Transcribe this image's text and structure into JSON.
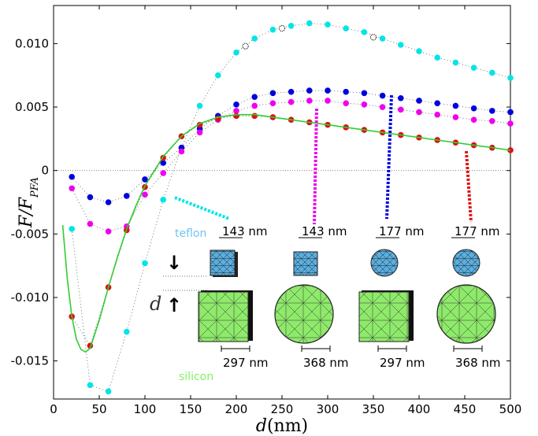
{
  "chart_data": {
    "type": "scatter",
    "x_axis": {
      "title": "d(nm)",
      "range": [
        0,
        500
      ],
      "ticks": [
        0,
        50,
        100,
        150,
        200,
        250,
        300,
        350,
        400,
        450,
        500
      ],
      "tick_labels": [
        "0",
        "50",
        "100",
        "150",
        "200",
        "250",
        "300",
        "350",
        "400",
        "450",
        "500"
      ]
    },
    "y_axis": {
      "title": "F/F_PFA",
      "range": [
        -0.018,
        0.013
      ],
      "ticks": [
        -0.015,
        -0.01,
        -0.005,
        0,
        0.005,
        0.01
      ],
      "tick_labels": [
        "-0.015",
        "-0.010",
        "-0.005",
        "0",
        "0.005",
        "0.010"
      ],
      "zero_line": true
    },
    "series": [
      {
        "color": "#00e5e5",
        "x": [
          20,
          40,
          60,
          80,
          100,
          120,
          140,
          160,
          180,
          200,
          220,
          240,
          260,
          280,
          300,
          320,
          340,
          360,
          380,
          400,
          420,
          440,
          460,
          480,
          500
        ],
        "y": [
          -0.0046,
          -0.0169,
          -0.0174,
          -0.0127,
          -0.0073,
          -0.0023,
          0.0018,
          0.0051,
          0.0075,
          0.0093,
          0.0104,
          0.0111,
          0.0114,
          0.0116,
          0.0115,
          0.0112,
          0.0109,
          0.0104,
          0.0099,
          0.0094,
          0.0089,
          0.0085,
          0.0081,
          0.0077,
          0.0073
        ]
      },
      {
        "color": "#0000dd",
        "x": [
          20,
          40,
          60,
          80,
          100,
          120,
          140,
          160,
          180,
          200,
          220,
          240,
          260,
          280,
          300,
          320,
          340,
          360,
          380,
          400,
          420,
          440,
          460,
          480,
          500
        ],
        "y": [
          -0.0005,
          -0.0021,
          -0.0025,
          -0.002,
          -0.0007,
          0.0006,
          0.0018,
          0.0033,
          0.0043,
          0.0052,
          0.0058,
          0.0061,
          0.0062,
          0.0063,
          0.0063,
          0.0062,
          0.0061,
          0.0059,
          0.0057,
          0.0055,
          0.0053,
          0.0051,
          0.0049,
          0.0047,
          0.0046
        ]
      },
      {
        "color": "#ee00ee",
        "x": [
          20,
          40,
          60,
          80,
          100,
          120,
          140,
          160,
          180,
          200,
          220,
          240,
          260,
          280,
          300,
          320,
          340,
          360,
          380,
          400,
          420,
          440,
          460,
          480,
          500
        ],
        "y": [
          -0.0014,
          -0.0042,
          -0.0048,
          -0.0044,
          -0.0019,
          -0.0002,
          0.0015,
          0.003,
          0.004,
          0.0047,
          0.0051,
          0.0053,
          0.0054,
          0.0055,
          0.0055,
          0.0053,
          0.0052,
          0.005,
          0.0048,
          0.0046,
          0.0044,
          0.0042,
          0.004,
          0.0039,
          0.0037
        ]
      },
      {
        "color": "#dd1111",
        "x": [
          20,
          40,
          60,
          80,
          100,
          120,
          140,
          160,
          180,
          200,
          220,
          240,
          260,
          280,
          300,
          320,
          340,
          360,
          380,
          400,
          420,
          440,
          460,
          480,
          500
        ],
        "y": [
          -0.0115,
          -0.0138,
          -0.0092,
          -0.0047,
          -0.0013,
          0.001,
          0.0027,
          0.0036,
          0.0041,
          0.0043,
          0.0043,
          0.0042,
          0.004,
          0.0038,
          0.0036,
          0.0034,
          0.0032,
          0.003,
          0.0028,
          0.0026,
          0.0024,
          0.0022,
          0.002,
          0.0018,
          0.0016
        ]
      },
      {
        "style": "line",
        "color": "#33cc33",
        "x": [
          10,
          15,
          20,
          25,
          30,
          35,
          40,
          50,
          60,
          70,
          80,
          90,
          100,
          120,
          140,
          160,
          180,
          200,
          220,
          240,
          260,
          280,
          300,
          320,
          340,
          360,
          380,
          400,
          420,
          440,
          460,
          480,
          500
        ],
        "y": [
          -0.0043,
          -0.0085,
          -0.0115,
          -0.0133,
          -0.0141,
          -0.0143,
          -0.014,
          -0.0118,
          -0.0092,
          -0.0068,
          -0.0046,
          -0.0028,
          -0.0012,
          0.0011,
          0.0027,
          0.0037,
          0.0042,
          0.0044,
          0.0044,
          0.0042,
          0.004,
          0.0038,
          0.0036,
          0.0034,
          0.0032,
          0.003,
          0.0028,
          0.0026,
          0.0024,
          0.0022,
          0.002,
          0.0018,
          0.0016
        ]
      }
    ],
    "open_markers": {
      "x": [
        210,
        250,
        350
      ],
      "y": [
        0.0098,
        0.0112,
        0.0105
      ]
    },
    "annotations": {
      "teflon_label": "teflon",
      "silicon_label": "silicon",
      "teflon_sizes": [
        "143 nm",
        "143 nm",
        "177 nm",
        "177 nm"
      ],
      "silicon_sizes": [
        "297 nm",
        "368 nm",
        "297 nm",
        "368 nm"
      ],
      "d_symbol": "d",
      "colors": {
        "teflon": "#6ec6f0",
        "silicon": "#88ee66",
        "mesh_blue": "#5aaee0",
        "mesh_green": "#8eea6a"
      }
    }
  }
}
